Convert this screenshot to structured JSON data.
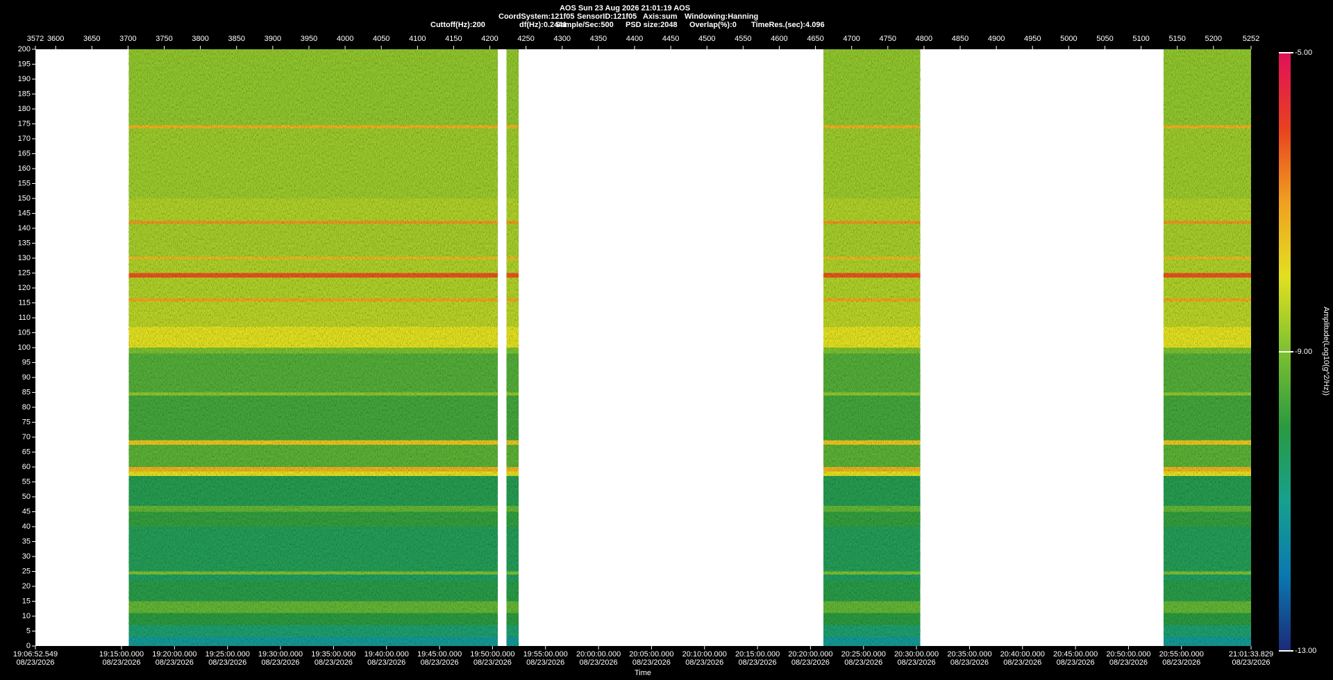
{
  "chart_data": {
    "type": "spectrogram",
    "title": "AOS  Sun 23 Aug 2026 21:01:19  AOS",
    "header_fields": [
      "CoordSystem:121f05",
      "SensorID:121f05",
      "Axis:sum",
      "Windowing:Hanning"
    ],
    "header_fields_2": [
      "Cuttoff(Hz):200",
      "df(Hz):0.2441",
      "Sample/Sec:500",
      "PSD size:2048",
      "Overlap(%):0",
      "TimeRes.(sec):4.096"
    ],
    "x_label": "Time",
    "colorbar_label": "Amplitude(Log10(g^2/Hz))",
    "xlim": [
      3572,
      5252
    ],
    "xticks": [
      3572,
      3600,
      3650,
      3700,
      3750,
      3800,
      3850,
      3900,
      3950,
      4000,
      4050,
      4100,
      4150,
      4200,
      4250,
      4300,
      4350,
      4400,
      4450,
      4500,
      4550,
      4600,
      4650,
      4700,
      4750,
      4800,
      4850,
      4900,
      4950,
      5000,
      5050,
      5100,
      5150,
      5200,
      5252
    ],
    "time_ticks": [
      {
        "value": 3572,
        "label": "19:06:52.549"
      },
      {
        "value": 3691.0,
        "label": "19:15:00.000"
      },
      {
        "value": 3764.2,
        "label": "19:20:00.000"
      },
      {
        "value": 3837.5,
        "label": "19:25:00.000"
      },
      {
        "value": 3910.7,
        "label": "19:30:00.000"
      },
      {
        "value": 3984.0,
        "label": "19:35:00.000"
      },
      {
        "value": 4057.2,
        "label": "19:40:00.000"
      },
      {
        "value": 4130.5,
        "label": "19:45:00.000"
      },
      {
        "value": 4203.7,
        "label": "19:50:00.000"
      },
      {
        "value": 4276.9,
        "label": "19:55:00.000"
      },
      {
        "value": 4350.2,
        "label": "20:00:00.000"
      },
      {
        "value": 4423.4,
        "label": "20:05:00.000"
      },
      {
        "value": 4496.7,
        "label": "20:10:00.000"
      },
      {
        "value": 4569.9,
        "label": "20:15:00.000"
      },
      {
        "value": 4643.1,
        "label": "20:20:00.000"
      },
      {
        "value": 4716.4,
        "label": "20:25:00.000"
      },
      {
        "value": 4789.6,
        "label": "20:30:00.000"
      },
      {
        "value": 4862.9,
        "label": "20:35:00.000"
      },
      {
        "value": 4936.1,
        "label": "20:40:00.000"
      },
      {
        "value": 5009.4,
        "label": "20:45:00.000"
      },
      {
        "value": 5082.6,
        "label": "20:50:00.000"
      },
      {
        "value": 5155.8,
        "label": "20:55:00.000"
      },
      {
        "value": 5252,
        "label": "21:01:33.829"
      }
    ],
    "date": "08/23/2026",
    "ylim": [
      0,
      200
    ],
    "yticks": [
      0,
      5,
      10,
      15,
      20,
      25,
      30,
      35,
      40,
      45,
      50,
      55,
      60,
      65,
      70,
      75,
      80,
      85,
      90,
      95,
      100,
      105,
      110,
      115,
      120,
      125,
      130,
      135,
      140,
      145,
      150,
      155,
      160,
      165,
      170,
      175,
      180,
      185,
      190,
      195,
      200
    ],
    "segments": [
      [
        3701,
        4211
      ],
      [
        4223,
        4240
      ],
      [
        4661,
        4795
      ],
      [
        5131,
        5252
      ]
    ],
    "band_edges": [
      0,
      3,
      7,
      11,
      15,
      22,
      24,
      25,
      40,
      45,
      47,
      57,
      58.5,
      60,
      67.5,
      69,
      84,
      85,
      98,
      100,
      107,
      115.5,
      116.5,
      123.5,
      125,
      129.5,
      130.5,
      141.5,
      142.5,
      150,
      173.5,
      174.5,
      200
    ],
    "band_values": [
      -11.2,
      -10.6,
      -10.0,
      -9.3,
      -10.1,
      -10.4,
      -9.0,
      -10.3,
      -9.9,
      -9.3,
      -10.2,
      -8.0,
      -7.3,
      -9.4,
      -7.6,
      -9.7,
      -8.8,
      -9.5,
      -9.0,
      -8.0,
      -8.4,
      -7.1,
      -8.5,
      -6.2,
      -8.5,
      -7.4,
      -8.6,
      -6.9,
      -8.5,
      -8.7,
      -7.3,
      -8.8
    ],
    "clim": [
      -13,
      -5
    ],
    "cticks": [
      {
        "value": -13,
        "label": "-13.00"
      },
      {
        "value": -9,
        "label": "-9.00"
      },
      {
        "value": -5,
        "label": "-5.00"
      }
    ],
    "colormap": [
      "#1c2a78",
      "#0a78b0",
      "#16a08e",
      "#2a9a40",
      "#7cc030",
      "#e2e020",
      "#f0a020",
      "#e84020",
      "#e0105a"
    ]
  }
}
